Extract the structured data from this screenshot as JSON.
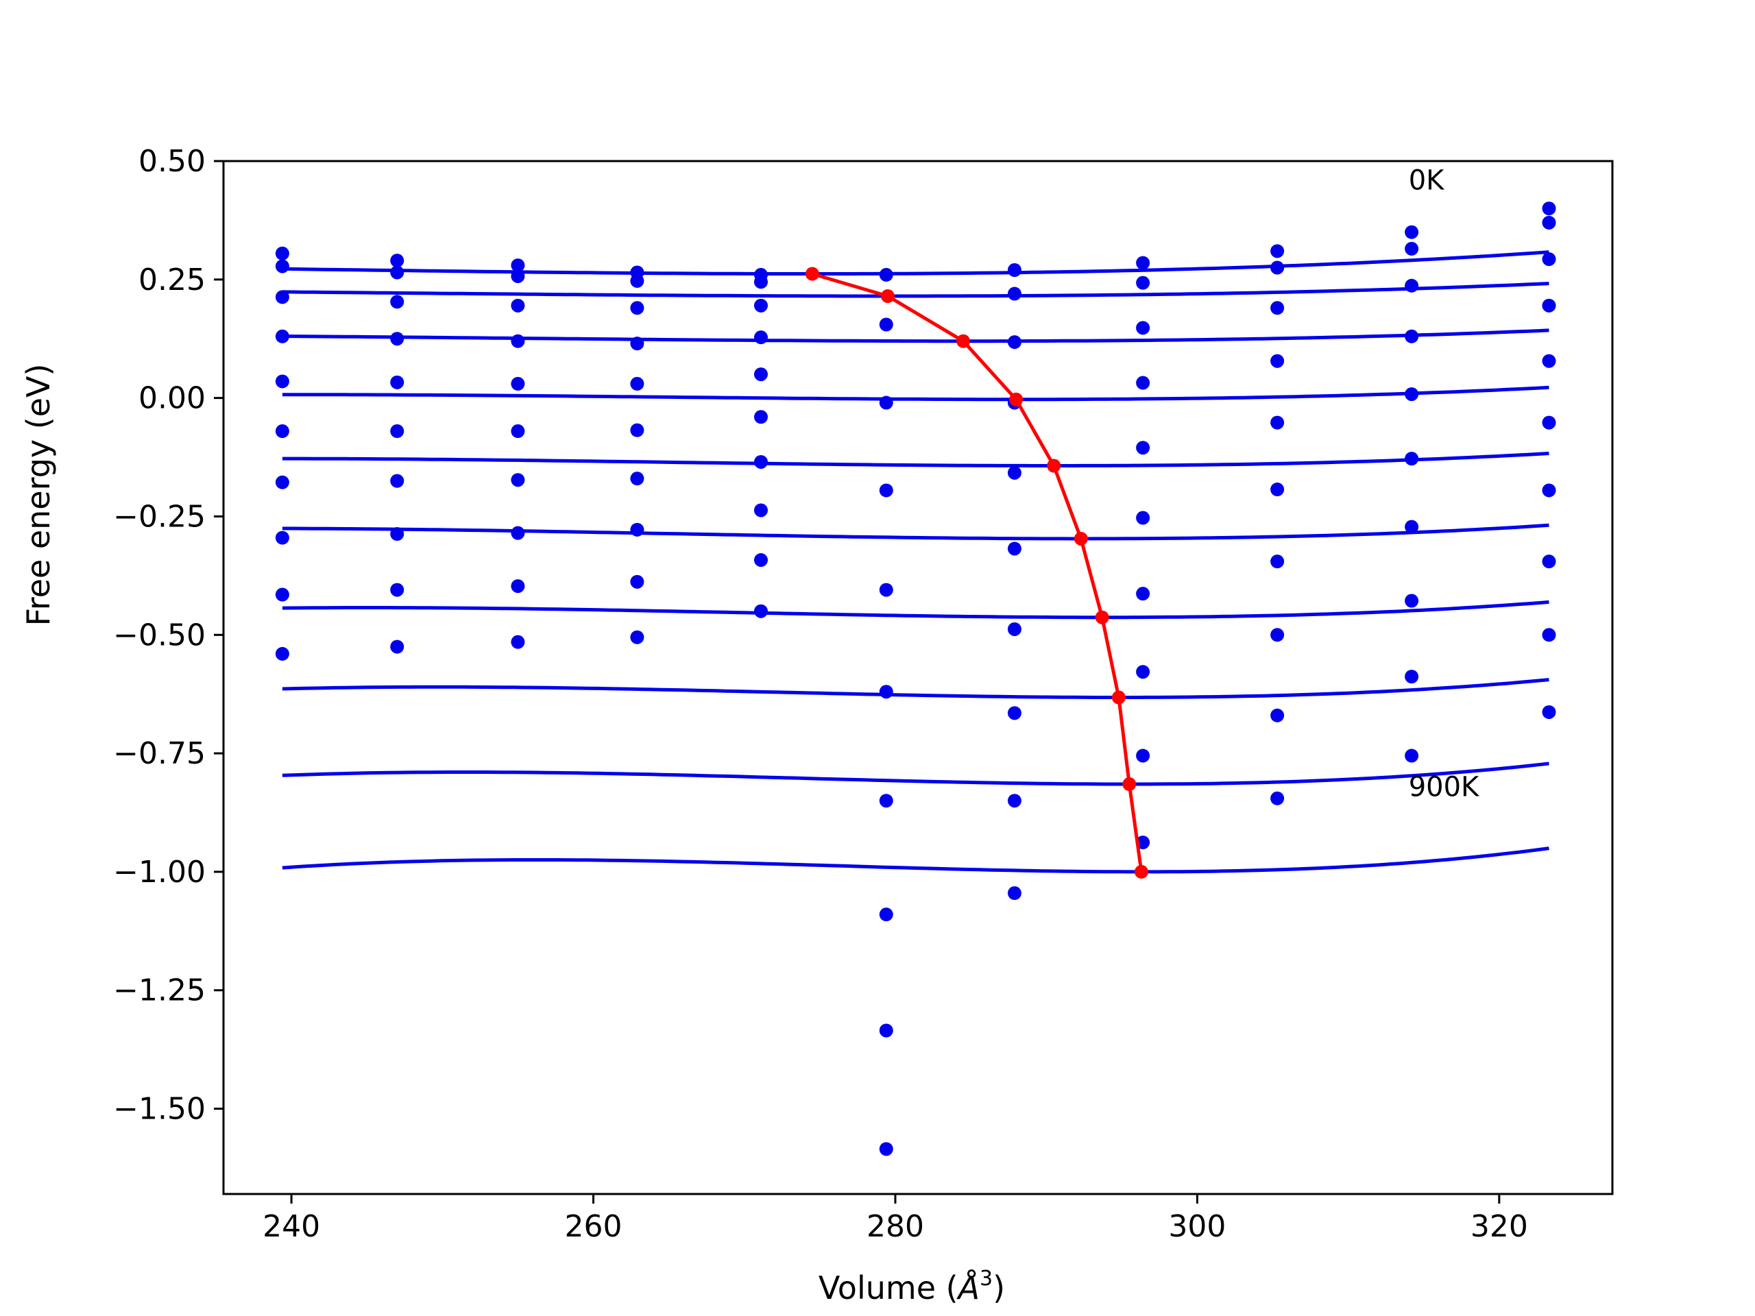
{
  "chart_data": {
    "type": "scatter",
    "title": "",
    "xlabel_main": "Volume (",
    "xlabel_symbol": "Å",
    "xlabel_exp": "3",
    "xlabel_close": ")",
    "ylabel": "Free energy (eV)",
    "xlim": [
      235.5,
      327.5
    ],
    "ylim": [
      -1.68,
      0.5
    ],
    "grid": false,
    "xticks": [
      240,
      260,
      280,
      300,
      320
    ],
    "xtick_labels": [
      "240",
      "260",
      "280",
      "300",
      "320"
    ],
    "yticks": [
      0.5,
      0.25,
      0.0,
      -0.25,
      -0.5,
      -0.75,
      -1.0,
      -1.25,
      -1.5
    ],
    "ytick_labels": [
      "0.50",
      "0.25",
      "0.00",
      "−0.25",
      "−0.50",
      "−0.75",
      "−1.00",
      "−1.25",
      "−1.50"
    ],
    "annotations": [
      {
        "text": "0K",
        "x": 314,
        "y": 0.46
      },
      {
        "text": "900K",
        "x": 314,
        "y": -0.82
      }
    ],
    "colors": {
      "points": "#0000ee",
      "curves": "#0000ee",
      "minimum_path": "#ff0000",
      "axes": "#000000"
    },
    "volumes": [
      239.4,
      247.0,
      255.0,
      262.9,
      271.1,
      279.4,
      287.9,
      296.4,
      305.3,
      314.2,
      323.3
    ],
    "points": [
      [
        0.305,
        0.29,
        0.28,
        0.265,
        0.26,
        0.26,
        0.27,
        0.285,
        0.31,
        0.35,
        0.4
      ],
      [
        0.278,
        0.265,
        0.257,
        0.247,
        0.245,
        null,
        0.22,
        0.243,
        0.275,
        0.315,
        0.37
      ],
      [
        0.213,
        0.203,
        0.195,
        0.19,
        0.195,
        0.155,
        0.118,
        0.148,
        0.19,
        0.237,
        0.293
      ],
      [
        0.13,
        0.125,
        0.12,
        0.115,
        0.128,
        null,
        null,
        null,
        0.078,
        0.13,
        0.195
      ],
      [
        0.035,
        0.033,
        0.03,
        0.03,
        0.05,
        -0.01,
        -0.01,
        0.032,
        null,
        0.008,
        0.078
      ],
      [
        -0.07,
        -0.07,
        -0.07,
        -0.068,
        -0.04,
        null,
        null,
        -0.105,
        -0.052,
        -0.128,
        -0.052
      ],
      [
        -0.178,
        -0.175,
        -0.173,
        -0.17,
        -0.135,
        -0.195,
        -0.158,
        -0.253,
        -0.193,
        -0.272,
        -0.195
      ],
      [
        -0.295,
        -0.287,
        -0.285,
        -0.278,
        -0.237,
        null,
        -0.318,
        -0.413,
        -0.345,
        -0.428,
        -0.345
      ],
      [
        -0.415,
        -0.405,
        -0.397,
        -0.388,
        -0.342,
        -0.405,
        -0.488,
        -0.578,
        -0.5,
        -0.588,
        -0.5
      ],
      [
        -0.54,
        -0.525,
        -0.515,
        -0.505,
        -0.45,
        -0.62,
        -0.665,
        -0.755,
        -0.67,
        -0.755,
        -0.663
      ],
      [
        null,
        null,
        null,
        null,
        null,
        -0.85,
        -0.85,
        -0.938,
        -0.845,
        null,
        null
      ],
      [
        null,
        null,
        null,
        null,
        null,
        -1.09,
        -1.045,
        null,
        null,
        null,
        null
      ],
      [
        null,
        null,
        null,
        null,
        null,
        -1.335,
        null,
        null,
        null,
        null,
        null
      ],
      [
        null,
        null,
        null,
        null,
        null,
        -1.585,
        null,
        null,
        null,
        null,
        null
      ]
    ],
    "fit_curves": [
      {
        "vmin": 274.5,
        "emin": 0.262,
        "a": 1.3e-05,
        "b": 1.3e-07
      },
      {
        "vmin": 279.5,
        "emin": 0.215,
        "a": 9.5e-06,
        "b": 1e-07
      },
      {
        "vmin": 284.5,
        "emin": 0.12,
        "a": 1.05e-05,
        "b": 1.2e-07
      },
      {
        "vmin": 288.0,
        "emin": -0.003,
        "a": 1.35e-05,
        "b": 1.9e-07
      },
      {
        "vmin": 290.5,
        "emin": -0.143,
        "a": 1.7e-05,
        "b": 2.2e-07
      },
      {
        "vmin": 292.3,
        "emin": -0.297,
        "a": 2.15e-05,
        "b": 2.6e-07
      },
      {
        "vmin": 293.7,
        "emin": -0.463,
        "a": 2.62e-05,
        "b": 3.6e-07
      },
      {
        "vmin": 294.8,
        "emin": -0.632,
        "a": 3.25e-05,
        "b": 4.8e-07
      },
      {
        "vmin": 295.5,
        "emin": -0.815,
        "a": 3.95e-05,
        "b": 6e-07
      },
      {
        "vmin": 296.3,
        "emin": -1.0,
        "a": 4.7e-05,
        "b": 7.8e-07
      }
    ],
    "fit_x_range": [
      239.4,
      323.3
    ],
    "minimum_path": {
      "x": [
        274.5,
        279.5,
        284.5,
        288.0,
        290.5,
        292.3,
        293.7,
        294.8,
        295.5,
        296.3
      ],
      "y": [
        0.262,
        0.215,
        0.12,
        -0.003,
        -0.143,
        -0.297,
        -0.463,
        -0.632,
        -0.815,
        -1.0
      ]
    }
  }
}
